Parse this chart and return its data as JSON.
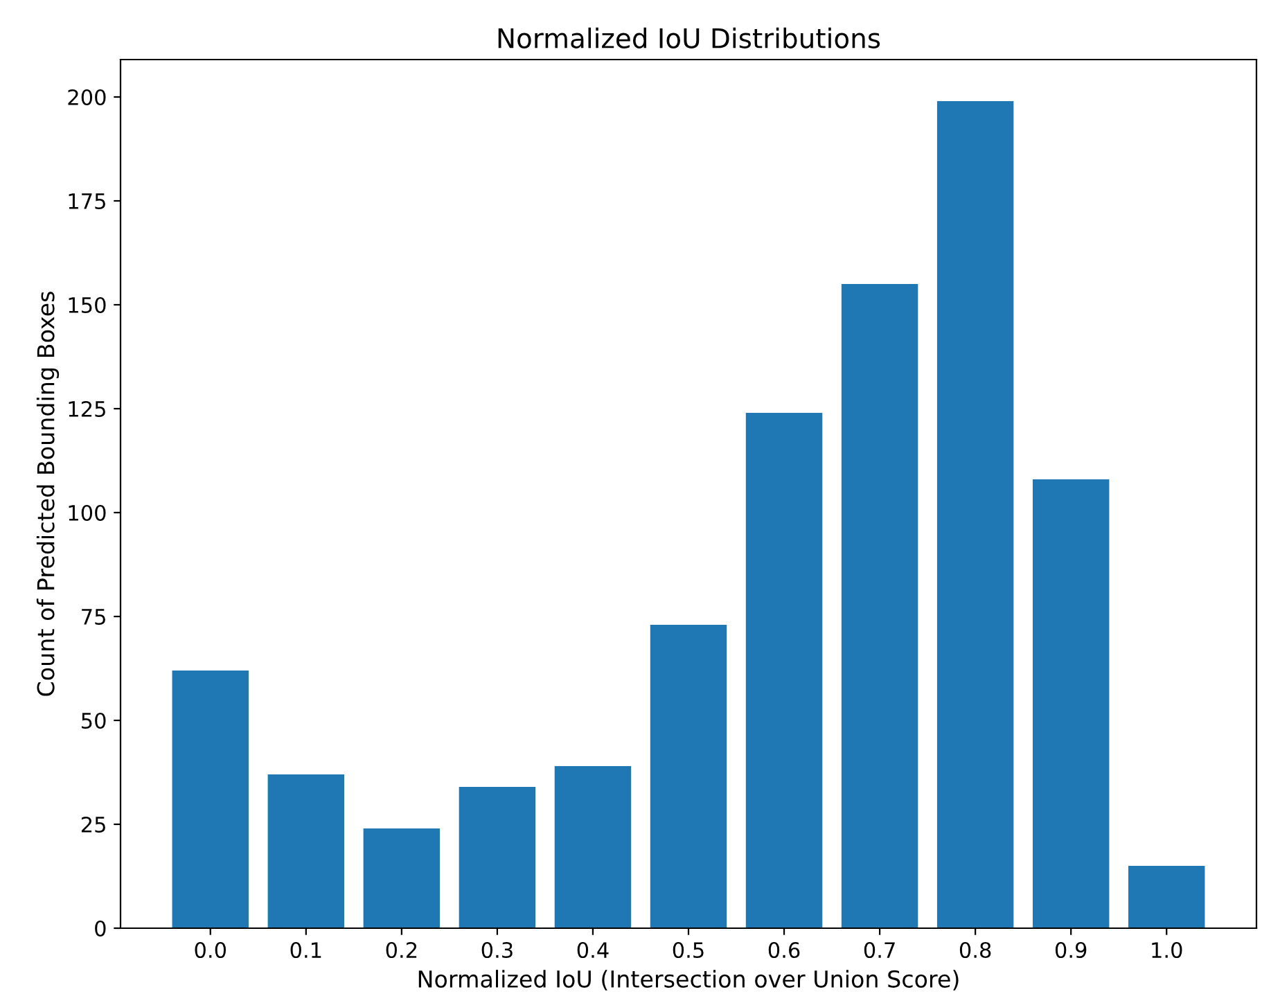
{
  "chart_data": {
    "type": "bar",
    "title": "Normalized IoU Distributions",
    "xlabel": "Normalized IoU (Intersection over Union Score)",
    "ylabel": "Count of Predicted Bounding Boxes",
    "categories": [
      "0.0",
      "0.1",
      "0.2",
      "0.3",
      "0.4",
      "0.5",
      "0.6",
      "0.7",
      "0.8",
      "0.9",
      "1.0"
    ],
    "values": [
      62,
      37,
      24,
      34,
      39,
      73,
      124,
      155,
      199,
      108,
      15
    ],
    "color": "#1f77b4",
    "ylim": [
      0,
      209
    ],
    "yticks": [
      0,
      25,
      50,
      75,
      100,
      125,
      150,
      175,
      200
    ],
    "grid": false
  }
}
